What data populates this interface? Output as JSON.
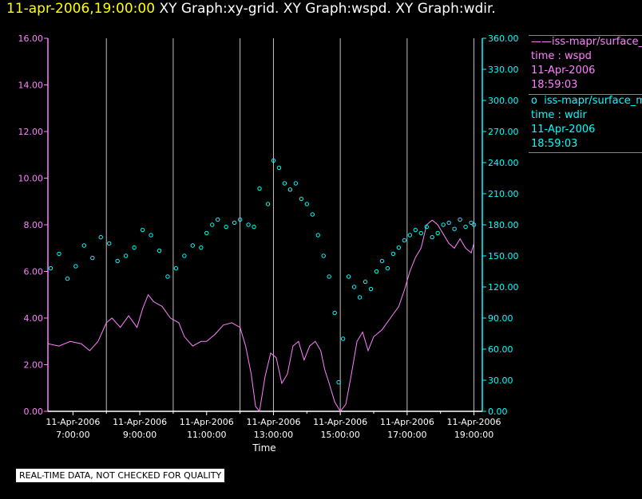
{
  "header": {
    "timestamp": "11-apr-2006,19:00:00",
    "titles": "XY Graph:xy-grid.  XY Graph:wspd.  XY Graph:wdir."
  },
  "legend": {
    "series": [
      {
        "marker": "——",
        "name": "iss-mapr/surface_m",
        "axis_label": "time : wspd",
        "date": "11-Apr-2006",
        "time": "18:59:03"
      },
      {
        "marker": "o",
        "name": "iss-mapr/surface_m",
        "axis_label": "time : wdir",
        "date": "11-Apr-2006",
        "time": "18:59:03"
      }
    ]
  },
  "badge": "REAL-TIME DATA, NOT CHECKED FOR QUALITY",
  "colors": {
    "wspd": "#ff80ff",
    "wdir": "#00ffff",
    "grid": "#c0c0c0",
    "axis": "#ffffff",
    "background": "#000000",
    "timestamp": "#ffff00"
  },
  "chart_data": {
    "type": "line",
    "xlabel": "Time",
    "xlim": [
      "2006-04-11T06:15",
      "2006-04-11T19:15"
    ],
    "x_ticks": [
      {
        "date": "11-Apr-2006",
        "time": "7:00:00"
      },
      {
        "date": "11-Apr-2006",
        "time": "9:00:00"
      },
      {
        "date": "11-Apr-2006",
        "time": "11:00:00"
      },
      {
        "date": "11-Apr-2006",
        "time": "13:00:00"
      },
      {
        "date": "11-Apr-2006",
        "time": "15:00:00"
      },
      {
        "date": "11-Apr-2006",
        "time": "17:00:00"
      },
      {
        "date": "11-Apr-2006",
        "time": "19:00:00"
      }
    ],
    "vertical_grid_times": [
      "08:00",
      "10:00",
      "12:00",
      "13:00",
      "15:00",
      "17:00",
      "19:00"
    ],
    "y_left": {
      "lim": [
        0,
        16
      ],
      "ticks": [
        "0.00",
        "2.00",
        "4.00",
        "6.00",
        "8.00",
        "10.00",
        "12.00",
        "14.00",
        "16.00"
      ]
    },
    "y_right": {
      "lim": [
        0,
        360
      ],
      "ticks": [
        "0.00",
        "30.00",
        "60.00",
        "90.00",
        "120.00",
        "150.00",
        "180.00",
        "210.00",
        "240.00",
        "270.00",
        "300.00",
        "330.00",
        "360.00"
      ]
    },
    "series": [
      {
        "key": "wspd",
        "axis": "left",
        "style": "line",
        "points": [
          [
            "06:15",
            2.9
          ],
          [
            "06:35",
            2.8
          ],
          [
            "06:55",
            3.0
          ],
          [
            "07:15",
            2.9
          ],
          [
            "07:30",
            2.6
          ],
          [
            "07:45",
            3.0
          ],
          [
            "08:00",
            3.8
          ],
          [
            "08:10",
            4.0
          ],
          [
            "08:25",
            3.6
          ],
          [
            "08:40",
            4.1
          ],
          [
            "08:55",
            3.6
          ],
          [
            "09:05",
            4.4
          ],
          [
            "09:15",
            5.0
          ],
          [
            "09:25",
            4.7
          ],
          [
            "09:40",
            4.5
          ],
          [
            "09:55",
            4.0
          ],
          [
            "10:10",
            3.8
          ],
          [
            "10:20",
            3.2
          ],
          [
            "10:35",
            2.8
          ],
          [
            "10:50",
            3.0
          ],
          [
            "11:00",
            3.0
          ],
          [
            "11:15",
            3.3
          ],
          [
            "11:30",
            3.7
          ],
          [
            "11:45",
            3.8
          ],
          [
            "12:00",
            3.6
          ],
          [
            "12:10",
            2.8
          ],
          [
            "12:20",
            1.6
          ],
          [
            "12:28",
            0.2
          ],
          [
            "12:35",
            0.0
          ],
          [
            "12:45",
            1.5
          ],
          [
            "12:55",
            2.5
          ],
          [
            "13:05",
            2.3
          ],
          [
            "13:15",
            1.2
          ],
          [
            "13:25",
            1.6
          ],
          [
            "13:35",
            2.8
          ],
          [
            "13:45",
            3.0
          ],
          [
            "13:55",
            2.2
          ],
          [
            "14:05",
            2.8
          ],
          [
            "14:15",
            3.0
          ],
          [
            "14:25",
            2.6
          ],
          [
            "14:32",
            1.8
          ],
          [
            "14:40",
            1.2
          ],
          [
            "14:50",
            0.4
          ],
          [
            "15:00",
            0.0
          ],
          [
            "15:10",
            0.3
          ],
          [
            "15:20",
            1.6
          ],
          [
            "15:30",
            3.0
          ],
          [
            "15:40",
            3.4
          ],
          [
            "15:50",
            2.6
          ],
          [
            "16:00",
            3.2
          ],
          [
            "16:15",
            3.5
          ],
          [
            "16:30",
            4.0
          ],
          [
            "16:45",
            4.5
          ],
          [
            "16:55",
            5.2
          ],
          [
            "17:05",
            6.0
          ],
          [
            "17:15",
            6.6
          ],
          [
            "17:25",
            7.0
          ],
          [
            "17:35",
            8.0
          ],
          [
            "17:45",
            8.2
          ],
          [
            "17:55",
            8.0
          ],
          [
            "18:05",
            7.6
          ],
          [
            "18:15",
            7.2
          ],
          [
            "18:25",
            7.0
          ],
          [
            "18:35",
            7.4
          ],
          [
            "18:45",
            7.0
          ],
          [
            "18:55",
            6.8
          ],
          [
            "19:00",
            7.2
          ]
        ]
      },
      {
        "key": "wdir",
        "axis": "right",
        "style": "markers",
        "points": [
          [
            "06:20",
            138
          ],
          [
            "06:35",
            152
          ],
          [
            "06:50",
            128
          ],
          [
            "07:05",
            140
          ],
          [
            "07:20",
            160
          ],
          [
            "07:35",
            148
          ],
          [
            "07:50",
            168
          ],
          [
            "08:05",
            162
          ],
          [
            "08:20",
            145
          ],
          [
            "08:35",
            150
          ],
          [
            "08:50",
            158
          ],
          [
            "09:05",
            175
          ],
          [
            "09:20",
            170
          ],
          [
            "09:35",
            155
          ],
          [
            "09:50",
            130
          ],
          [
            "10:05",
            138
          ],
          [
            "10:20",
            150
          ],
          [
            "10:35",
            160
          ],
          [
            "10:50",
            158
          ],
          [
            "11:00",
            172
          ],
          [
            "11:10",
            180
          ],
          [
            "11:20",
            185
          ],
          [
            "11:35",
            178
          ],
          [
            "11:50",
            182
          ],
          [
            "12:00",
            185
          ],
          [
            "12:15",
            180
          ],
          [
            "12:25",
            178
          ],
          [
            "12:35",
            215
          ],
          [
            "12:50",
            200
          ],
          [
            "13:00",
            242
          ],
          [
            "13:10",
            235
          ],
          [
            "13:20",
            220
          ],
          [
            "13:30",
            214
          ],
          [
            "13:40",
            220
          ],
          [
            "13:50",
            205
          ],
          [
            "14:00",
            200
          ],
          [
            "14:10",
            190
          ],
          [
            "14:20",
            170
          ],
          [
            "14:30",
            150
          ],
          [
            "14:40",
            130
          ],
          [
            "14:50",
            95
          ],
          [
            "14:57",
            28
          ],
          [
            "15:05",
            70
          ],
          [
            "15:15",
            130
          ],
          [
            "15:25",
            120
          ],
          [
            "15:35",
            110
          ],
          [
            "15:45",
            125
          ],
          [
            "15:55",
            118
          ],
          [
            "16:05",
            135
          ],
          [
            "16:15",
            145
          ],
          [
            "16:25",
            138
          ],
          [
            "16:35",
            152
          ],
          [
            "16:45",
            158
          ],
          [
            "16:55",
            165
          ],
          [
            "17:05",
            170
          ],
          [
            "17:15",
            175
          ],
          [
            "17:25",
            172
          ],
          [
            "17:35",
            178
          ],
          [
            "17:45",
            168
          ],
          [
            "17:55",
            172
          ],
          [
            "18:05",
            180
          ],
          [
            "18:15",
            182
          ],
          [
            "18:25",
            176
          ],
          [
            "18:35",
            185
          ],
          [
            "18:45",
            178
          ],
          [
            "18:55",
            182
          ],
          [
            "19:00",
            180
          ]
        ]
      }
    ]
  }
}
